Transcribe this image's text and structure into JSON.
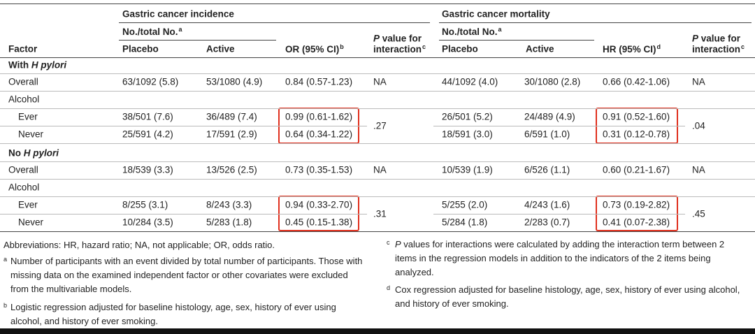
{
  "table": {
    "header": {
      "factor": "Factor",
      "incidence": {
        "title": "Gastric cancer incidence",
        "count_header": {
          "text": "No./total No.",
          "note": "a"
        },
        "placebo": "Placebo",
        "active": "Active",
        "estimate": {
          "text": "OR (95% CI)",
          "note": "b"
        },
        "p": {
          "italic": "P",
          "line1": " value for",
          "line2": "interaction",
          "note": "c"
        }
      },
      "mortality": {
        "title": "Gastric cancer mortality",
        "count_header": {
          "text": "No./total No.",
          "note": "a"
        },
        "placebo": "Placebo",
        "active": "Active",
        "estimate": {
          "text": "HR (95% CI)",
          "note": "d"
        },
        "p": {
          "italic": "P",
          "line1": " value for",
          "line2": "interaction",
          "note": "c"
        }
      }
    },
    "sections": [
      {
        "title": {
          "prefix": "With ",
          "italic": "H pylori"
        },
        "overall": {
          "label": "Overall",
          "cells": [
            "63/1092 (5.8)",
            "53/1080 (4.9)",
            "0.84 (0.57-1.23)",
            "NA",
            "44/1092 (4.0)",
            "30/1080 (2.8)",
            "0.66 (0.42-1.06)",
            "NA"
          ]
        },
        "group": {
          "label": "Alcohol",
          "p_incidence": ".27",
          "p_mortality": ".04",
          "rows": [
            {
              "label": "Ever",
              "cells": [
                "38/501 (7.6)",
                "36/489 (7.4)",
                "0.99 (0.61-1.62)",
                "26/501 (5.2)",
                "24/489 (4.9)",
                "0.91 (0.52-1.60)"
              ]
            },
            {
              "label": "Never",
              "cells": [
                "25/591 (4.2)",
                "17/591 (2.9)",
                "0.64 (0.34-1.22)",
                "18/591 (3.0)",
                "6/591 (1.0)",
                "0.31 (0.12-0.78)"
              ]
            }
          ]
        }
      },
      {
        "title": {
          "prefix": "No ",
          "italic": "H pylori"
        },
        "overall": {
          "label": "Overall",
          "cells": [
            "18/539 (3.3)",
            "13/526 (2.5)",
            "0.73 (0.35-1.53)",
            "NA",
            "10/539 (1.9)",
            "6/526 (1.1)",
            "0.60 (0.21-1.67)",
            "NA"
          ]
        },
        "group": {
          "label": "Alcohol",
          "p_incidence": ".31",
          "p_mortality": ".45",
          "rows": [
            {
              "label": "Ever",
              "cells": [
                "8/255 (3.1)",
                "8/243 (3.3)",
                "0.94 (0.33-2.70)",
                "5/255 (2.0)",
                "4/243 (1.6)",
                "0.73 (0.19-2.82)"
              ]
            },
            {
              "label": "Never",
              "cells": [
                "10/284 (3.5)",
                "5/283 (1.8)",
                "0.45 (0.15-1.38)",
                "5/284 (1.8)",
                "2/283 (0.7)",
                "0.41 (0.07-2.38)"
              ]
            }
          ]
        }
      }
    ]
  },
  "footnotes": {
    "abbreviations": "Abbreviations: HR, hazard ratio; NA, not applicable; OR, odds ratio.",
    "a": {
      "mark": "a",
      "text": "Number of participants with an event divided by total number of participants. Those with missing data on the examined independent factor or other covariates were excluded from the multivariable models."
    },
    "b": {
      "mark": "b",
      "text": "Logistic regression adjusted for baseline histology, age, sex, history of ever using alcohol, and history of ever smoking."
    },
    "c": {
      "mark": "c",
      "italic": "P",
      "text": " values for interactions were calculated by adding the interaction term between 2 items in the regression models in addition to the indicators of the 2 items being analyzed."
    },
    "d": {
      "mark": "d",
      "text": "Cox regression adjusted for baseline histology, age, sex, history of ever using alcohol, and history of ever smoking."
    }
  }
}
